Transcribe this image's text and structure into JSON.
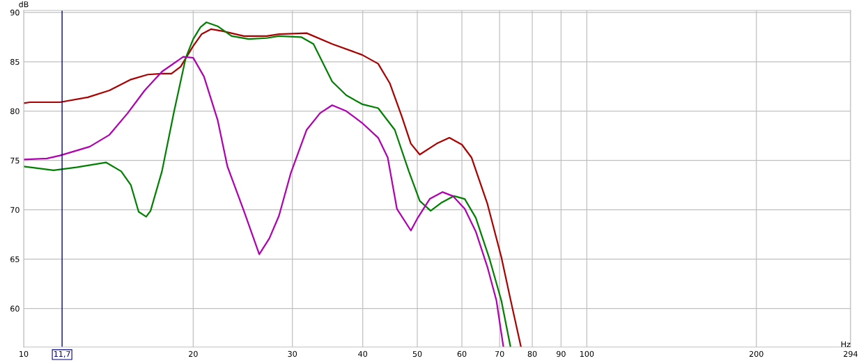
{
  "chart_data": {
    "type": "line",
    "xlabel": "Hz",
    "ylabel": "dB",
    "log": "x",
    "grid": true,
    "marker": "none",
    "line_style": "solid",
    "xlim": [
      10,
      294
    ],
    "ylim": [
      56.1,
      90.2
    ],
    "xticks": [
      10,
      20,
      30,
      40,
      50,
      60,
      70,
      80,
      90,
      100,
      200,
      294
    ],
    "yticks": [
      60,
      65,
      70,
      75,
      80,
      85,
      90
    ],
    "ref_lines": [
      {
        "axis": "x",
        "value": 11.7,
        "label": "11,7",
        "color": "#000080"
      }
    ],
    "series": [
      {
        "color": "#aa0000",
        "x": [
          10,
          10.26,
          11.6,
          13.0,
          14.2,
          15.5,
          16.6,
          17.6,
          18.3,
          19.0,
          20.0,
          20.7,
          21.5,
          22.6,
          24.6,
          27.0,
          28.4,
          31.8,
          35.3,
          39.9,
          42.6,
          44.7,
          46.9,
          48.7,
          50.5,
          54.1,
          57.0,
          60.0,
          62.4,
          66.6,
          70.5,
          73.2,
          76.4
        ],
        "values": [
          80.8,
          80.9,
          80.9,
          81.4,
          82.1,
          83.2,
          83.7,
          83.8,
          83.8,
          84.5,
          86.6,
          87.8,
          88.3,
          88.1,
          87.6,
          87.6,
          87.8,
          87.9,
          86.8,
          85.7,
          84.8,
          82.8,
          79.5,
          76.7,
          75.6,
          76.7,
          77.3,
          76.6,
          75.3,
          70.6,
          65.2,
          60.9,
          56.1
        ]
      },
      {
        "color": "#008000",
        "x": [
          10,
          11.3,
          12.4,
          14.0,
          14.9,
          15.5,
          16.0,
          16.5,
          16.8,
          17.6,
          18.5,
          19.4,
          20.0,
          20.6,
          21.1,
          22.1,
          23.4,
          25.1,
          27.0,
          28.4,
          31.1,
          32.7,
          35.3,
          37.4,
          39.9,
          42.6,
          45.6,
          48.3,
          50.5,
          52.8,
          55.1,
          58.1,
          60.7,
          63.5,
          67.2,
          70.5,
          73.2
        ],
        "values": [
          74.4,
          74.0,
          74.3,
          74.8,
          73.9,
          72.5,
          69.8,
          69.3,
          69.9,
          73.9,
          80.0,
          85.4,
          87.3,
          88.5,
          89.0,
          88.6,
          87.6,
          87.3,
          87.4,
          87.6,
          87.5,
          86.8,
          83.0,
          81.6,
          80.7,
          80.3,
          78.1,
          73.9,
          70.9,
          69.9,
          70.7,
          71.4,
          71.1,
          69.2,
          65.0,
          60.8,
          56.1
        ]
      },
      {
        "color": "#b000b0",
        "x": [
          10,
          11.0,
          11.6,
          13.1,
          14.2,
          15.3,
          16.4,
          17.6,
          19.2,
          20.0,
          20.9,
          22.1,
          23.0,
          24.6,
          26.2,
          27.3,
          28.4,
          29.8,
          31.8,
          33.6,
          35.3,
          37.4,
          39.9,
          42.6,
          44.3,
          46.0,
          48.7,
          50.1,
          52.6,
          55.4,
          57.8,
          60.7,
          63.5,
          66.6,
          69.1,
          71.1
        ],
        "values": [
          75.1,
          75.2,
          75.5,
          76.4,
          77.6,
          79.8,
          82.1,
          84.0,
          85.5,
          85.4,
          83.5,
          79.1,
          74.4,
          69.9,
          65.5,
          67.1,
          69.4,
          73.7,
          78.1,
          79.8,
          80.6,
          80.0,
          78.8,
          77.3,
          75.3,
          70.1,
          67.9,
          69.2,
          71.1,
          71.8,
          71.4,
          70.1,
          67.8,
          64.2,
          60.8,
          56.1
        ]
      }
    ]
  }
}
